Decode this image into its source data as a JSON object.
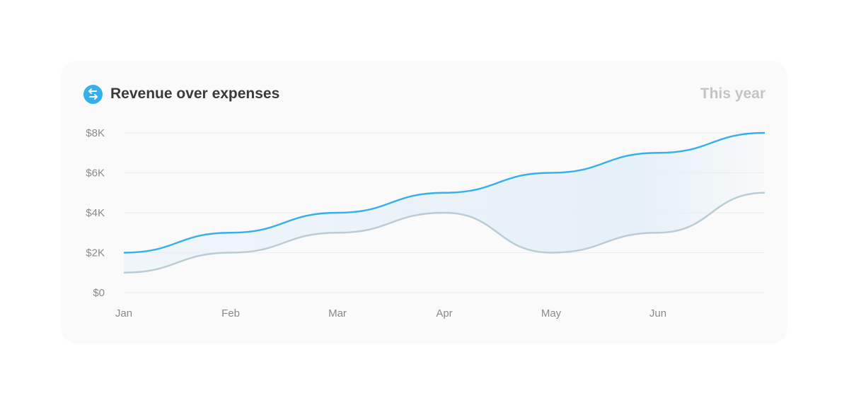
{
  "card": {
    "title": "Revenue over expenses",
    "period": "This year",
    "icon": "swap-arrows-icon"
  },
  "colors": {
    "revenue": "#35b0ea",
    "expenses": "#b9ccd6",
    "fill": "#e6f0f8",
    "icon_bg": "#35b0ea"
  },
  "chart_data": {
    "type": "line",
    "title": "Revenue over expenses",
    "x_ticks": [
      "Jan",
      "Feb",
      "Mar",
      "Apr",
      "May",
      "Jun"
    ],
    "x_points": 7,
    "y_ticks": [
      "$0",
      "$2K",
      "$4K",
      "$6K",
      "$8K"
    ],
    "y_tick_values": [
      0,
      2000,
      4000,
      6000,
      8000
    ],
    "ylim": [
      0,
      8000
    ],
    "grid": true,
    "series": [
      {
        "key": "revenue",
        "values": [
          2000,
          3000,
          4000,
          5000,
          6000,
          7000,
          8000
        ]
      },
      {
        "key": "expenses",
        "values": [
          1000,
          2000,
          3000,
          4000,
          2000,
          3000,
          5000
        ]
      }
    ],
    "fill_between": true
  }
}
